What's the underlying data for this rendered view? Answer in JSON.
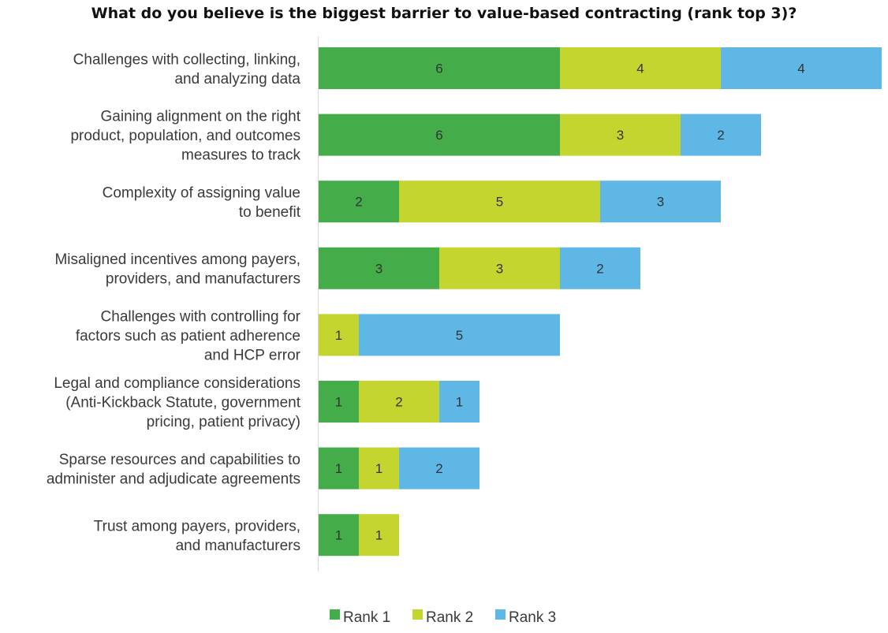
{
  "chart_data": {
    "type": "bar",
    "orientation": "horizontal",
    "stacked": true,
    "title": "What do you believe is the biggest barrier to value-based contracting (rank top 3)?",
    "xlabel": "",
    "ylabel": "",
    "xlim": [
      0,
      14
    ],
    "grid": false,
    "legend_position": "bottom",
    "categories": [
      "Challenges with collecting, linking, and analyzing data",
      "Gaining alignment on the right product, population, and outcomes measures to track",
      "Complexity of assigning value to benefit",
      "Misaligned incentives among payers, providers, and manufacturers",
      "Challenges with controlling for factors such as patient adherence and HCP error",
      "Legal and compliance considerations (Anti-Kickback Statute, government pricing, patient privacy)",
      "Sparse resources and capabilities to administer and adjudicate agreements",
      "Trust among payers, providers, and manufacturers"
    ],
    "category_lines": [
      [
        "Challenges with collecting, linking,",
        "and analyzing data"
      ],
      [
        "Gaining alignment on the right",
        "product, population, and outcomes",
        "measures to track"
      ],
      [
        "Complexity of assigning value",
        "to benefit"
      ],
      [
        "Misaligned incentives among payers,",
        "providers, and manufacturers"
      ],
      [
        "Challenges with controlling for",
        "factors such as patient adherence",
        "and HCP error"
      ],
      [
        "Legal and compliance considerations",
        "(Anti-Kickback Statute, government",
        "pricing, patient privacy)"
      ],
      [
        "Sparse resources and capabilities to",
        "administer and adjudicate agreements"
      ],
      [
        "Trust among payers, providers,",
        "and manufacturers"
      ]
    ],
    "series": [
      {
        "name": "Rank 1",
        "color": "#44ad4a",
        "values": [
          6,
          6,
          2,
          3,
          0,
          1,
          1,
          1
        ]
      },
      {
        "name": "Rank 2",
        "color": "#c4d52f",
        "values": [
          4,
          3,
          5,
          3,
          1,
          2,
          1,
          1
        ]
      },
      {
        "name": "Rank 3",
        "color": "#5fb7e6",
        "values": [
          4,
          2,
          3,
          2,
          5,
          1,
          2,
          0
        ]
      }
    ]
  }
}
